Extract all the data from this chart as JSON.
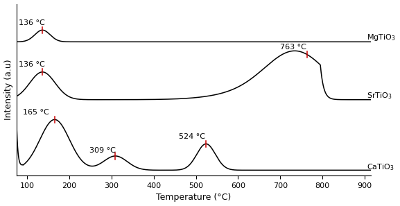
{
  "xlabel": "Temperature (°C)",
  "ylabel": "Intensity (a.u)",
  "xlim": [
    75,
    915
  ],
  "xticks": [
    100,
    200,
    300,
    400,
    500,
    600,
    700,
    800,
    900
  ],
  "line_color": "#000000",
  "marker_color": "#cc0000",
  "background_color": "#ffffff",
  "fontsize_axis": 9,
  "fontsize_annotation": 8,
  "fontsize_label": 8,
  "offsets": {
    "MgTiO3": 0.74,
    "SrTiO3": 0.42,
    "CaTiO3": 0.03
  },
  "scales": {
    "MgTiO3": 0.065,
    "SrTiO3": 0.27,
    "CaTiO3": 0.28
  }
}
